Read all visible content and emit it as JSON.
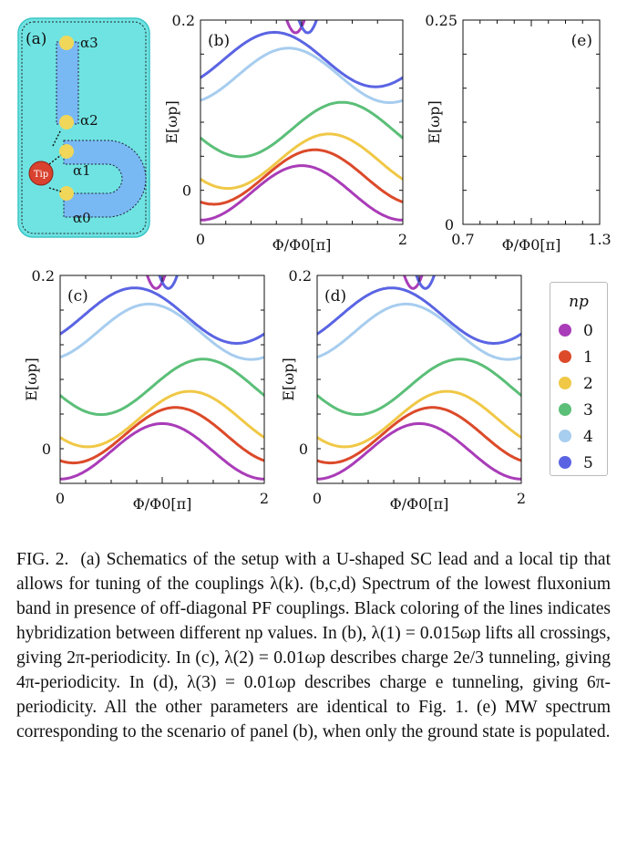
{
  "panel_a": {
    "label": "(a)",
    "tip_label": "Tip",
    "couplings": [
      "α3",
      "α2",
      "α1",
      "α0"
    ],
    "colors": {
      "background": "#6ee3e2",
      "lead": "#78b9f4",
      "dot": "#f0d75a",
      "tip": "#d8422f"
    }
  },
  "chart_data": [
    {
      "id": "b",
      "type": "line",
      "label": "(b)",
      "xlabel": "Φ/Φ0[π]",
      "ylabel": "E[ωp]",
      "xlim": [
        0,
        2
      ],
      "ylim": [
        -0.04,
        0.2
      ],
      "xticks": [
        "0",
        "2"
      ],
      "yticks": [
        "0",
        "0.2"
      ],
      "hybridization": "all crossings lifted",
      "series": [
        {
          "name": "0",
          "period": 2,
          "shift": 0
        },
        {
          "name": "1",
          "period": 2,
          "shift": 0.13
        },
        {
          "name": "2",
          "period": 2,
          "shift": 0.27
        },
        {
          "name": "3",
          "period": 2,
          "shift": 0.4
        },
        {
          "name": "4",
          "period": 2,
          "shift": -0.13
        },
        {
          "name": "5",
          "period": 2,
          "shift": -0.27
        }
      ]
    },
    {
      "id": "c",
      "type": "line",
      "label": "(c)",
      "xlabel": "Φ/Φ0[π]",
      "ylabel": "E[ωp]",
      "xlim": [
        0,
        2
      ],
      "ylim": [
        -0.04,
        0.2
      ],
      "xticks": [
        "0",
        "2"
      ],
      "yticks": [
        "0",
        "0.2"
      ],
      "hybridization": "some crossings lifted",
      "series": [
        {
          "name": "0",
          "period": 4,
          "shift": 0
        },
        {
          "name": "1",
          "period": 4,
          "shift": 0.13
        },
        {
          "name": "2",
          "period": 4,
          "shift": 0.27
        },
        {
          "name": "3",
          "period": 4,
          "shift": 0.4
        },
        {
          "name": "4",
          "period": 4,
          "shift": -0.13
        },
        {
          "name": "5",
          "period": 4,
          "shift": -0.27
        }
      ]
    },
    {
      "id": "d",
      "type": "line",
      "label": "(d)",
      "xlabel": "Φ/Φ0[π]",
      "ylabel": "E[ωp]",
      "xlim": [
        0,
        2
      ],
      "ylim": [
        -0.04,
        0.2
      ],
      "xticks": [
        "0",
        "2"
      ],
      "yticks": [
        "0",
        "0.2"
      ],
      "hybridization": "some crossings lifted",
      "series": [
        {
          "name": "0",
          "period": 6,
          "shift": 0
        },
        {
          "name": "1",
          "period": 6,
          "shift": 0.13
        },
        {
          "name": "2",
          "period": 6,
          "shift": 0.27
        },
        {
          "name": "3",
          "period": 6,
          "shift": 0.4
        },
        {
          "name": "4",
          "period": 6,
          "shift": -0.13
        },
        {
          "name": "5",
          "period": 6,
          "shift": -0.27
        }
      ]
    },
    {
      "id": "e",
      "type": "line",
      "label": "(e)",
      "xlabel": "Φ/Φ0[π]",
      "ylabel": "E[ωp]",
      "xlim": [
        0.7,
        1.3
      ],
      "ylim": [
        0,
        0.25
      ],
      "xticks": [
        "0.7",
        "1.3"
      ],
      "yticks": [
        "0",
        "0.25"
      ],
      "series": []
    }
  ],
  "legend": {
    "title": "np",
    "entries": [
      {
        "label": "0",
        "color": "#a93cb8"
      },
      {
        "label": "1",
        "color": "#dc4a2a"
      },
      {
        "label": "2",
        "color": "#f0c846"
      },
      {
        "label": "3",
        "color": "#5bbf78"
      },
      {
        "label": "4",
        "color": "#a7cdef"
      },
      {
        "label": "5",
        "color": "#5a64e3"
      }
    ]
  },
  "caption": {
    "fig": "FIG. 2.",
    "text": "(a) Schematics of the setup with a U-shaped SC lead and a local tip that allows for tuning of the couplings λ(k). (b,c,d) Spectrum of the lowest fluxonium band in presence of off-diagonal PF couplings. Black coloring of the lines indicates hybridization between different np values. In (b), λ(1) = 0.015ωp lifts all crossings, giving 2π-periodicity. In (c), λ(2) = 0.01ωp describes charge 2e/3 tunneling, giving 4π-periodicity. In (d), λ(3) = 0.01ωp describes charge e tunneling, giving 6π-periodicity. All the other parameters are identical to Fig. 1. (e) MW spectrum corresponding to the scenario of panel (b), when only the ground state is populated."
  }
}
